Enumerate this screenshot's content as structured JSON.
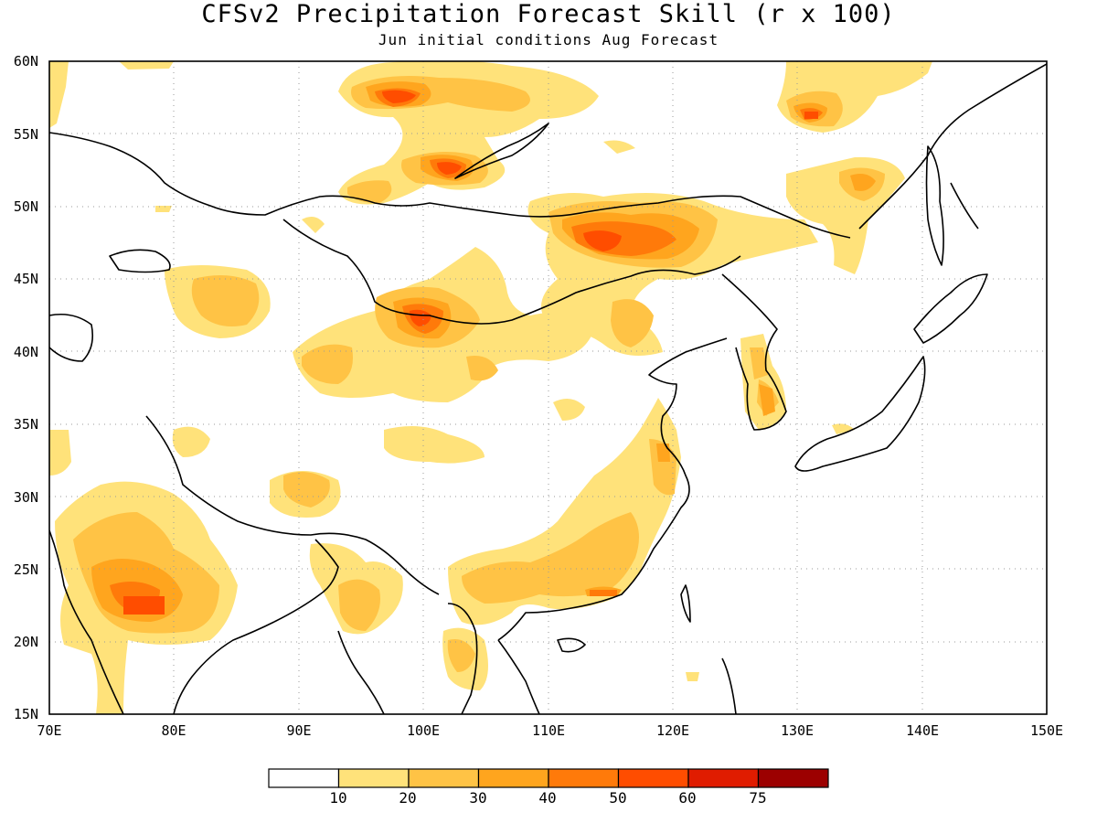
{
  "title": "CFSv2 Precipitation Forecast Skill (r x 100)",
  "subtitle": "Jun initial conditions  Aug Forecast",
  "map": {
    "lon_range": [
      70,
      150
    ],
    "lat_range": [
      15,
      60
    ],
    "lat_ticks": [
      "60N",
      "55N",
      "50N",
      "45N",
      "40N",
      "35N",
      "30N",
      "25N",
      "20N",
      "15N"
    ],
    "lon_ticks": [
      "70E",
      "80E",
      "90E",
      "100E",
      "110E",
      "120E",
      "130E",
      "140E",
      "150E"
    ],
    "grid": "dotted"
  },
  "legend": {
    "colors": [
      "#ffffff",
      "#ffe27a",
      "#ffc345",
      "#ffa51e",
      "#ff7a0a",
      "#ff4d00",
      "#e01c00",
      "#9c0000"
    ],
    "labels": [
      "10",
      "20",
      "30",
      "40",
      "50",
      "60",
      "75"
    ]
  }
}
